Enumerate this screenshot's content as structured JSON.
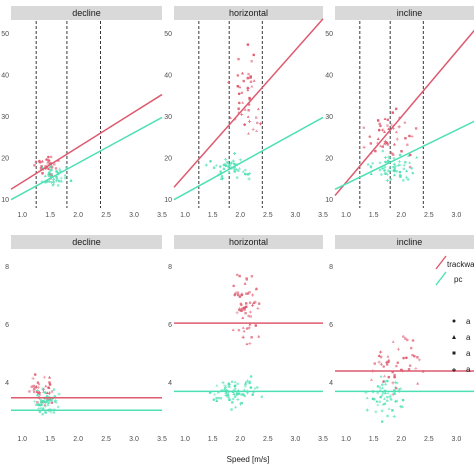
{
  "xlabel": "Speed [m/s]",
  "colors": {
    "trackway": "#de5a6e",
    "pc": "#4ee0b4",
    "strip": "#d9d9d9",
    "dashed": "#222222"
  },
  "legend": {
    "entries": [
      "trackwa",
      "pc"
    ],
    "shape_labels": [
      "a",
      "a",
      "a",
      "a"
    ]
  },
  "chart_data": [
    {
      "type": "scatter",
      "panel": "top-decline",
      "title": "decline",
      "xlim": [
        0.8,
        3.5
      ],
      "ylim": [
        8,
        53
      ],
      "x_ticks": [
        "1.0",
        "1.5",
        "2.0",
        "2.5",
        "3.0",
        "3.5"
      ],
      "y_ticks": [
        "10",
        "20",
        "30",
        "40",
        "50"
      ],
      "vlines": [
        1.25,
        1.8,
        2.4
      ],
      "trend": {
        "trackwa": [
          [
            0.8,
            12.5
          ],
          [
            3.5,
            35.3
          ]
        ],
        "pc": [
          [
            0.8,
            10.0
          ],
          [
            3.5,
            29.8
          ]
        ]
      },
      "clusters": [
        {
          "series": "trackwa",
          "x": [
            1.15,
            1.75
          ],
          "y": [
            14,
            22
          ],
          "n": 35
        },
        {
          "series": "pc",
          "x": [
            1.25,
            1.9
          ],
          "y": [
            12,
            19
          ],
          "n": 40
        }
      ]
    },
    {
      "type": "scatter",
      "panel": "top-horizontal",
      "title": "horizontal",
      "xlim": [
        0.8,
        3.5
      ],
      "ylim": [
        8,
        53
      ],
      "x_ticks": [
        "1.0",
        "1.5",
        "2.0",
        "2.5",
        "3.0",
        "3.5"
      ],
      "y_ticks": [
        "10",
        "20",
        "30",
        "40",
        "50"
      ],
      "vlines": [
        1.25,
        1.8,
        2.4
      ],
      "trend": {
        "trackwa": [
          [
            0.8,
            13.0
          ],
          [
            3.5,
            53.5
          ]
        ],
        "pc": [
          [
            0.8,
            10.0
          ],
          [
            3.5,
            29.8
          ]
        ]
      },
      "clusters": [
        {
          "series": "trackwa",
          "x": [
            1.75,
            2.45
          ],
          "y": [
            22,
            50
          ],
          "n": 45
        },
        {
          "series": "pc",
          "x": [
            1.3,
            2.4
          ],
          "y": [
            13,
            22
          ],
          "n": 45
        }
      ]
    },
    {
      "type": "scatter",
      "panel": "top-incline",
      "title": "incline",
      "xlim": [
        0.8,
        3.5
      ],
      "ylim": [
        8,
        53
      ],
      "x_ticks": [
        "1.0",
        "1.5",
        "2.0",
        "2.5",
        "3.0",
        "3.5"
      ],
      "y_ticks": [
        "10",
        "20",
        "30",
        "40",
        "50"
      ],
      "vlines": [
        1.25,
        1.8,
        2.4
      ],
      "trend": {
        "trackwa": [
          [
            0.8,
            11.0
          ],
          [
            3.5,
            53.5
          ]
        ],
        "pc": [
          [
            0.8,
            12.5
          ],
          [
            3.5,
            30.0
          ]
        ]
      },
      "clusters": [
        {
          "series": "trackwa",
          "x": [
            1.1,
            2.5
          ],
          "y": [
            15,
            37
          ],
          "n": 45
        },
        {
          "series": "pc",
          "x": [
            1.2,
            2.5
          ],
          "y": [
            12,
            23
          ],
          "n": 55
        }
      ]
    },
    {
      "type": "scatter",
      "panel": "bottom-decline",
      "title": "decline",
      "xlim": [
        0.8,
        3.5
      ],
      "ylim": [
        2.3,
        8.6
      ],
      "x_ticks": [
        "1.0",
        "1.5",
        "2.0",
        "2.5",
        "3.0",
        "3.5"
      ],
      "y_ticks": [
        "4",
        "6",
        "8"
      ],
      "vlines": [],
      "trend": {
        "trackwa": [
          [
            0.8,
            3.48
          ],
          [
            3.5,
            3.48
          ]
        ],
        "pc": [
          [
            0.8,
            3.05
          ],
          [
            3.5,
            3.05
          ]
        ]
      },
      "clusters": [
        {
          "series": "trackwa",
          "x": [
            1.0,
            1.65
          ],
          "y": [
            2.8,
            4.6
          ],
          "n": 40
        },
        {
          "series": "pc",
          "x": [
            1.1,
            1.75
          ],
          "y": [
            2.7,
            3.9
          ],
          "n": 55
        }
      ]
    },
    {
      "type": "scatter",
      "panel": "bottom-horizontal",
      "title": "horizontal",
      "xlim": [
        0.8,
        3.5
      ],
      "ylim": [
        2.3,
        8.6
      ],
      "x_ticks": [
        "1.0",
        "1.5",
        "2.0",
        "2.5",
        "3.0",
        "3.5"
      ],
      "y_ticks": [
        "4",
        "6",
        "8"
      ],
      "vlines": [],
      "trend": {
        "trackwa": [
          [
            0.8,
            6.05
          ],
          [
            3.5,
            6.05
          ]
        ],
        "pc": [
          [
            0.8,
            3.7
          ],
          [
            3.5,
            3.7
          ]
        ]
      },
      "clusters": [
        {
          "series": "trackwa",
          "x": [
            1.75,
            2.45
          ],
          "y": [
            4.9,
            8.2
          ],
          "n": 60
        },
        {
          "series": "pc",
          "x": [
            1.35,
            2.5
          ],
          "y": [
            3.0,
            4.4
          ],
          "n": 70
        }
      ]
    },
    {
      "type": "scatter",
      "panel": "bottom-incline",
      "title": "incline",
      "xlim": [
        0.8,
        3.5
      ],
      "ylim": [
        2.3,
        8.6
      ],
      "x_ticks": [
        "1.0",
        "1.5",
        "2.0",
        "2.5",
        "3.0",
        "3.5"
      ],
      "y_ticks": [
        "4",
        "6",
        "8"
      ],
      "vlines": [],
      "trend": {
        "trackwa": [
          [
            0.8,
            4.4
          ],
          [
            3.5,
            4.4
          ]
        ],
        "pc": [
          [
            0.8,
            3.7
          ],
          [
            3.5,
            3.7
          ]
        ]
      },
      "clusters": [
        {
          "series": "trackwa",
          "x": [
            1.3,
            2.5
          ],
          "y": [
            3.3,
            6.0
          ],
          "n": 45
        },
        {
          "series": "pc",
          "x": [
            1.2,
            2.3
          ],
          "y": [
            2.5,
            4.5
          ],
          "n": 55
        }
      ]
    }
  ]
}
